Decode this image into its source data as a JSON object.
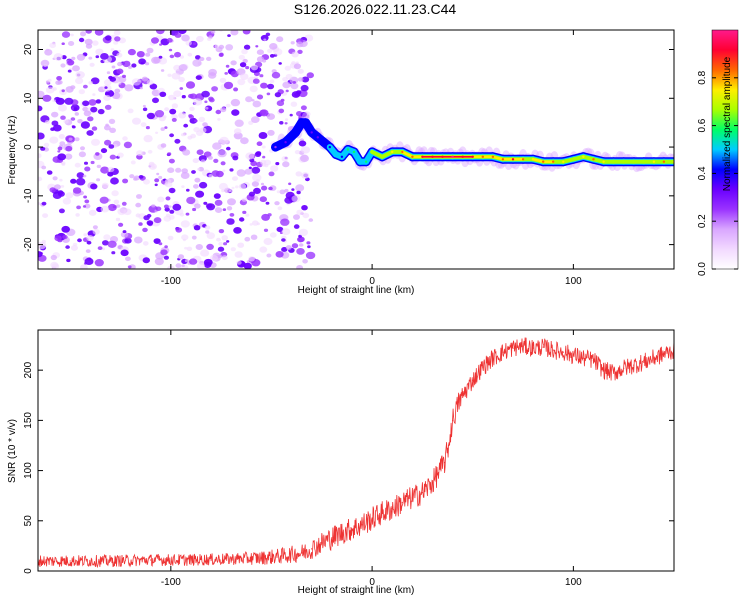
{
  "figure_title": "S126.2026.022.11.23.C44",
  "colors": {
    "snr_line": "#ee3333",
    "colormap": [
      "#ffffff",
      "#f2d9ff",
      "#d9a6ff",
      "#9a33ff",
      "#6a00ff",
      "#0000ff",
      "#00ccff",
      "#00ff66",
      "#aaff00",
      "#ffee00",
      "#ff6600",
      "#ff0033",
      "#ff1a8c"
    ]
  },
  "chart_data": [
    {
      "type": "heatmap",
      "title": "",
      "xlabel": "Height of straight line (km)",
      "ylabel": "Frequency (Hz)",
      "xlim": [
        -166,
        150
      ],
      "ylim": [
        -25,
        24
      ],
      "x_ticks": [
        -100,
        0,
        100
      ],
      "x_tick_labels": [
        "-100",
        "0",
        "100"
      ],
      "y_ticks": [
        -20,
        -10,
        0,
        10,
        20
      ],
      "y_tick_labels": [
        "-20",
        "-10",
        "0",
        "10",
        "20"
      ],
      "noise_region_x": [
        -166,
        -36
      ],
      "ridge": {
        "x": [
          -48,
          -43,
          -38,
          -35,
          -33,
          -30,
          -27,
          -24,
          -21,
          -18,
          -15,
          -12,
          -9,
          -6,
          -3,
          0,
          5,
          10,
          15,
          20,
          25,
          30,
          35,
          40,
          45,
          50,
          55,
          60,
          65,
          70,
          75,
          80,
          85,
          90,
          95,
          100,
          105,
          110,
          115,
          120,
          125,
          130,
          135,
          140,
          145,
          150
        ],
        "frequency": [
          0,
          1,
          3,
          5,
          5,
          3,
          2,
          1,
          0,
          -1.5,
          -2,
          -0.5,
          -1,
          -3,
          -3,
          -1,
          -2,
          -1,
          -1,
          -2,
          -2,
          -2,
          -2,
          -2,
          -2,
          -2,
          -2,
          -2,
          -2.5,
          -2.5,
          -2.5,
          -2.5,
          -3,
          -3,
          -3,
          -2.5,
          -2,
          -2.5,
          -3,
          -3,
          -3,
          -3,
          -3,
          -3,
          -3,
          -3
        ],
        "amplitude": [
          0.25,
          0.3,
          0.4,
          0.45,
          0.4,
          0.35,
          0.35,
          0.4,
          0.45,
          0.5,
          0.45,
          0.6,
          0.55,
          0.5,
          0.6,
          0.65,
          0.7,
          0.75,
          0.8,
          0.85,
          0.9,
          0.95,
          0.95,
          1.0,
          0.95,
          0.9,
          0.85,
          0.8,
          0.85,
          0.9,
          0.8,
          0.75,
          0.85,
          0.8,
          0.75,
          0.7,
          0.75,
          0.8,
          0.75,
          0.7,
          0.7,
          0.7,
          0.7,
          0.75,
          0.8,
          0.75
        ]
      },
      "colorbar": {
        "label": "Normalized spectral amplitude",
        "range": [
          0,
          1
        ],
        "ticks": [
          0.0,
          0.2,
          0.4,
          0.6,
          0.8
        ],
        "tick_labels": [
          "0.0",
          "0.2",
          "0.4",
          "0.6",
          "0.8"
        ]
      }
    },
    {
      "type": "line",
      "title": "",
      "xlabel": "Height of straight line (km)",
      "ylabel": "SNR (10 * v/v)",
      "xlim": [
        -166,
        150
      ],
      "ylim": [
        0,
        240
      ],
      "x_ticks": [
        -100,
        0,
        100
      ],
      "x_tick_labels": [
        "-100",
        "0",
        "100"
      ],
      "y_ticks": [
        0,
        50,
        100,
        150,
        200
      ],
      "y_tick_labels": [
        "0",
        "50",
        "100",
        "150",
        "200"
      ],
      "series": [
        {
          "name": "SNR",
          "x": [
            -166,
            -150,
            -130,
            -110,
            -90,
            -70,
            -55,
            -45,
            -35,
            -30,
            -25,
            -20,
            -15,
            -10,
            -5,
            0,
            5,
            10,
            15,
            20,
            25,
            30,
            33,
            36,
            38,
            40,
            43,
            46,
            50,
            55,
            60,
            65,
            70,
            75,
            80,
            85,
            90,
            95,
            100,
            105,
            110,
            115,
            120,
            125,
            130,
            135,
            140,
            145,
            150
          ],
          "values": [
            10,
            10,
            10,
            11,
            11,
            12,
            13,
            15,
            18,
            22,
            28,
            33,
            38,
            42,
            46,
            52,
            58,
            62,
            68,
            73,
            78,
            88,
            98,
            108,
            125,
            150,
            168,
            178,
            190,
            203,
            212,
            218,
            222,
            224,
            222,
            223,
            220,
            218,
            215,
            212,
            210,
            200,
            197,
            202,
            205,
            208,
            212,
            216,
            220
          ],
          "noise_amplitude": [
            6,
            6,
            6,
            6,
            6,
            6,
            7,
            8,
            9,
            10,
            11,
            12,
            12,
            12,
            12,
            12,
            12,
            12,
            12,
            12,
            12,
            12,
            12,
            12,
            12,
            12,
            11,
            10,
            9,
            9,
            9,
            9,
            9,
            9,
            9,
            9,
            9,
            9,
            9,
            9,
            9,
            9,
            9,
            9,
            9,
            9,
            9,
            9,
            9
          ]
        }
      ]
    }
  ]
}
